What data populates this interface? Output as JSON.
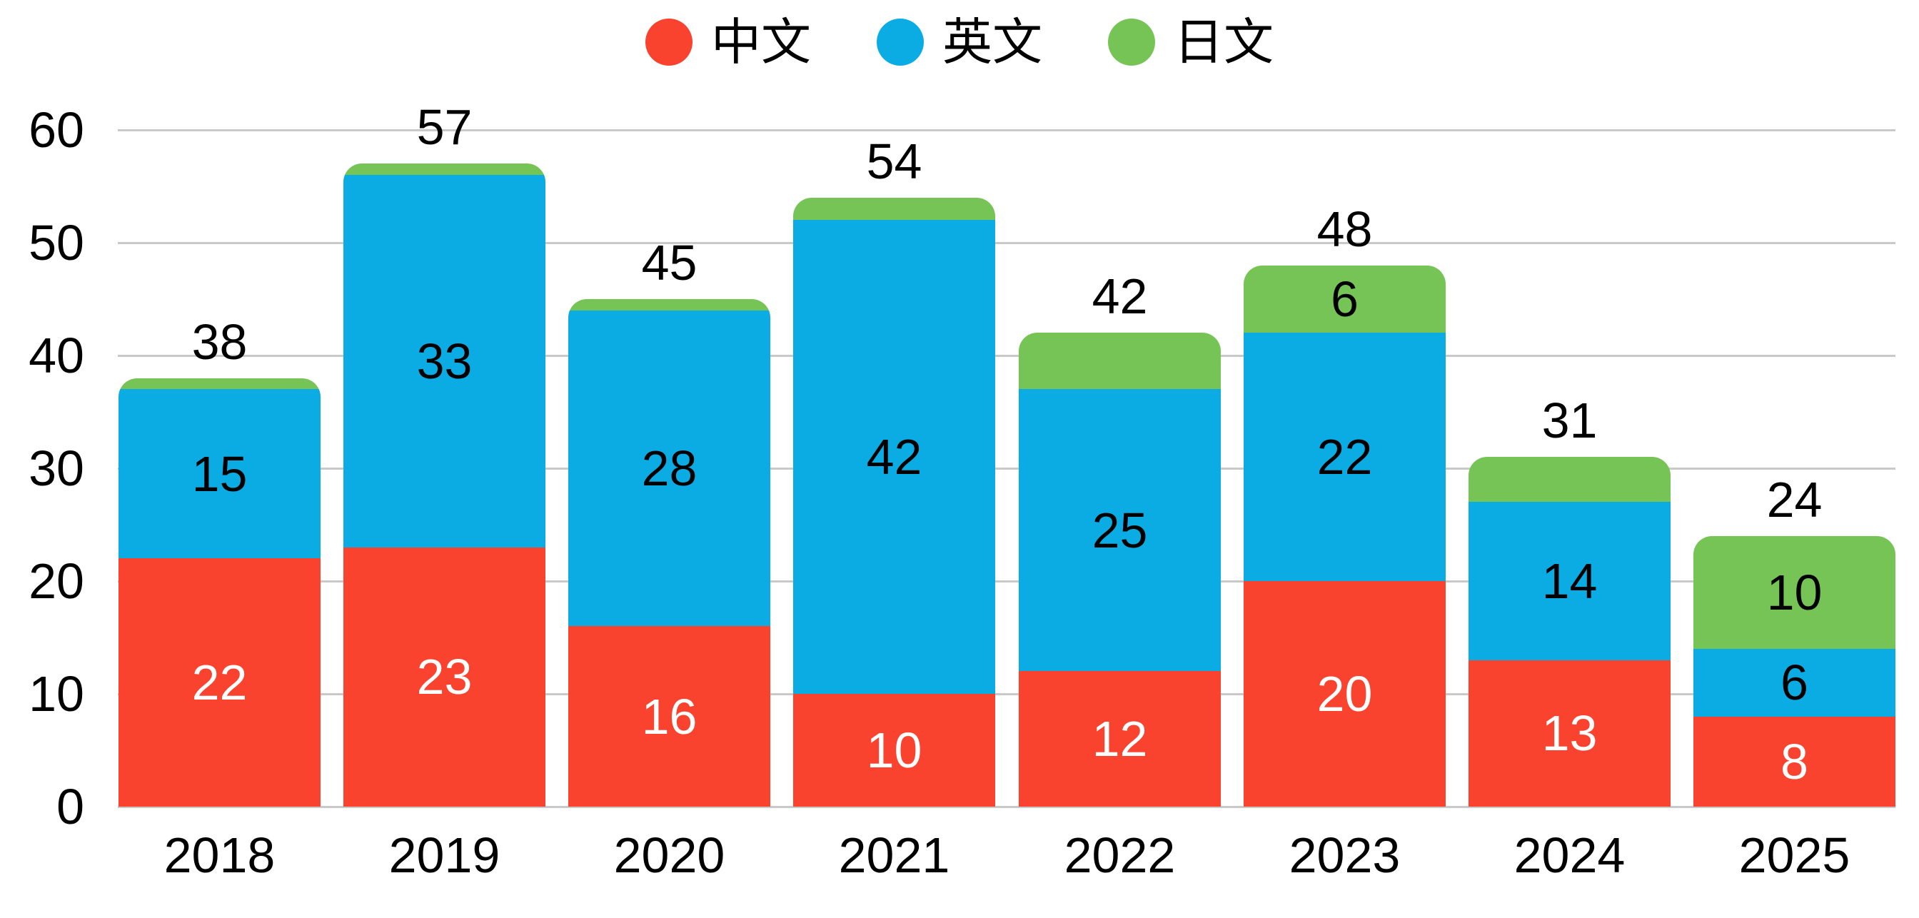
{
  "page": {
    "background": "#ffffff",
    "text_color": "#000000"
  },
  "chart_data": {
    "type": "bar",
    "stacked": true,
    "categories": [
      "2018",
      "2019",
      "2020",
      "2021",
      "2022",
      "2023",
      "2024",
      "2025"
    ],
    "series": [
      {
        "key": "zh",
        "name": "中文",
        "color": "#F9432E",
        "label_color": "#FFFFFF",
        "values": [
          22,
          23,
          16,
          10,
          12,
          20,
          13,
          8
        ]
      },
      {
        "key": "en",
        "name": "英文",
        "color": "#0BACE3",
        "label_color": "#000000",
        "values": [
          15,
          33,
          28,
          42,
          25,
          22,
          14,
          6
        ]
      },
      {
        "key": "ja",
        "name": "日文",
        "color": "#77C456",
        "label_color": "#000000",
        "values": [
          1,
          1,
          1,
          2,
          5,
          6,
          4,
          10
        ]
      }
    ],
    "totals": [
      38,
      57,
      45,
      54,
      42,
      48,
      31,
      24
    ],
    "ylim": [
      0,
      60
    ],
    "ytick_step": 10,
    "ytick_labels": [
      "0",
      "10",
      "20",
      "30",
      "40",
      "50",
      "60"
    ],
    "grid": true,
    "gridline_color": "#C9C9C9",
    "legend_position": "top",
    "segment_label_min_value": 6
  }
}
